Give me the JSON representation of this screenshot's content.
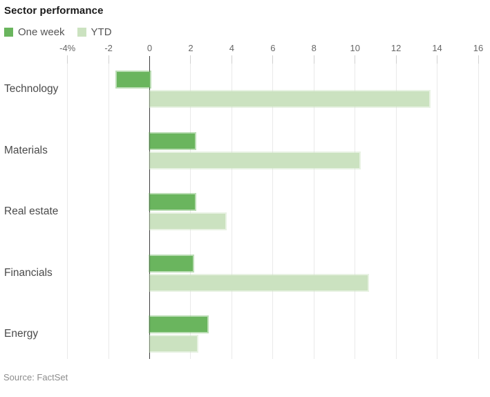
{
  "chart": {
    "title": "Sector performance",
    "source": "Source: FactSet"
  },
  "chart_data": {
    "type": "bar",
    "orientation": "horizontal",
    "title": "Sector performance",
    "source": "Source: FactSet",
    "categories": [
      "Technology",
      "Materials",
      "Real estate",
      "Financials",
      "Energy"
    ],
    "series": [
      {
        "name": "One week",
        "color": "#6ab55e",
        "values": [
          -1.6,
          2.2,
          2.2,
          2.1,
          2.8
        ]
      },
      {
        "name": "YTD",
        "color": "#cbe2c0",
        "values": [
          13.6,
          10.2,
          3.7,
          10.6,
          2.3
        ]
      }
    ],
    "xlim": [
      -4,
      16
    ],
    "xticks": [
      -4,
      -2,
      0,
      2,
      4,
      6,
      8,
      10,
      12,
      14,
      16
    ],
    "xtick_labels": [
      "-4%",
      "-2",
      "0",
      "2",
      "4",
      "6",
      "8",
      "10",
      "12",
      "14",
      "16"
    ],
    "grid": true,
    "legend_position": "top-left"
  }
}
